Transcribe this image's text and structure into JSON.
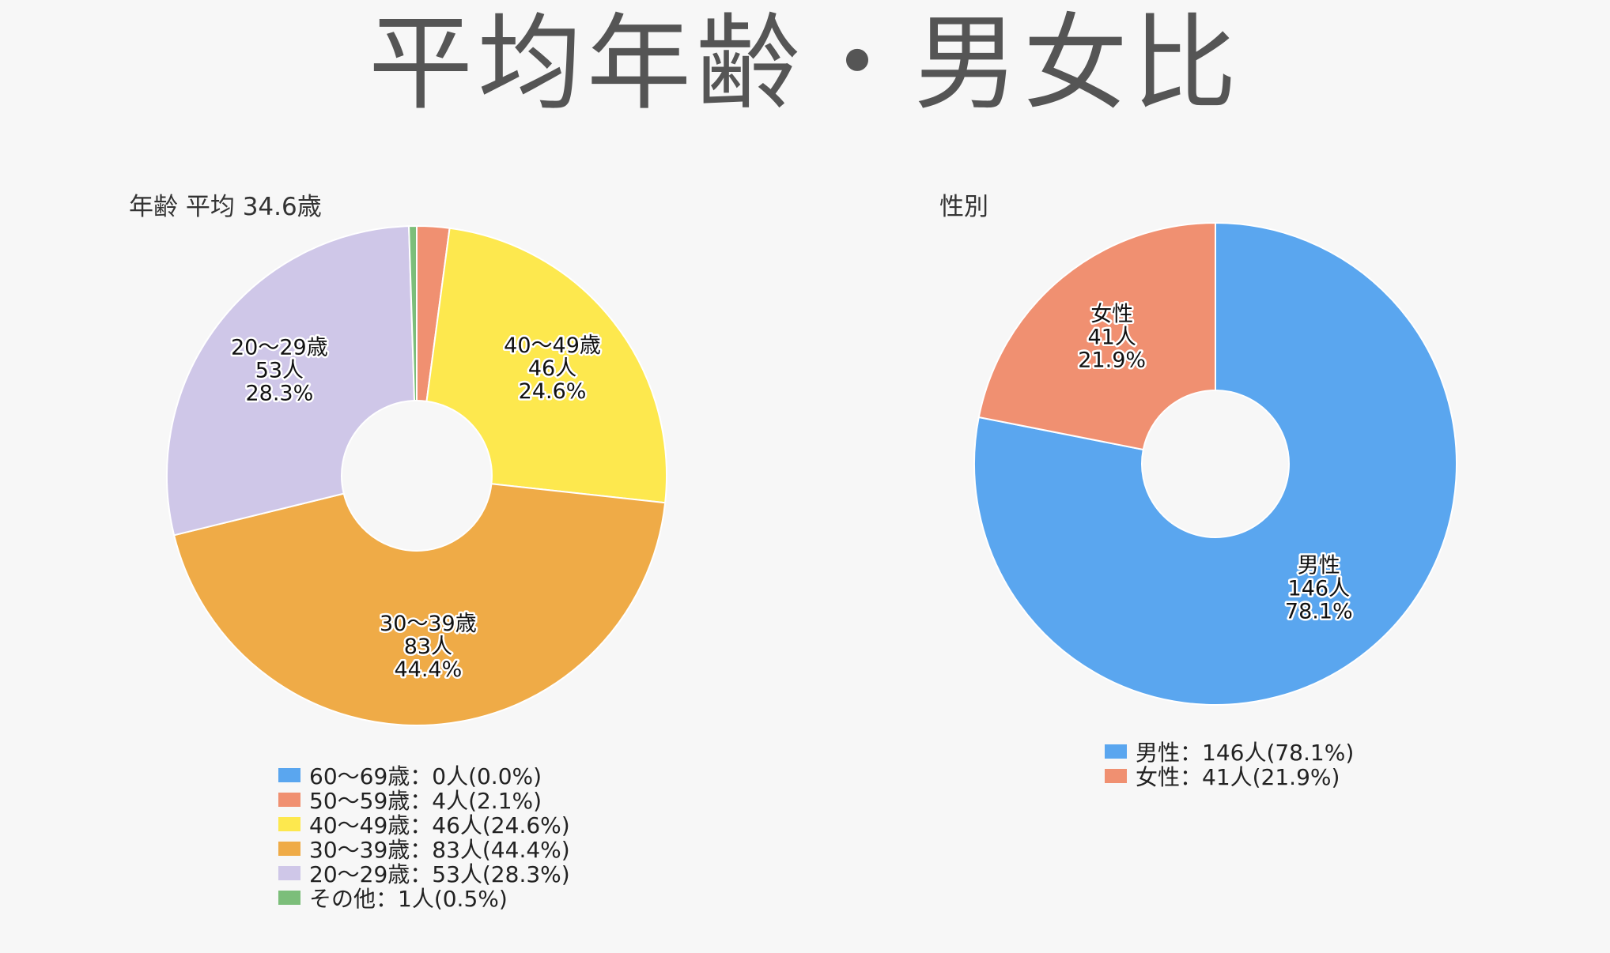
{
  "page": {
    "title": "平均年齢・男女比"
  },
  "chart_data": [
    {
      "type": "pie",
      "variant": "donut",
      "title": "年齢 平均 34.6歳",
      "legend_position": "bottom",
      "slices": [
        {
          "label": "60〜69歳",
          "count": 0,
          "percent": "0.0%",
          "value": 0.0,
          "color": "#5aa6ef",
          "slice_lines": [],
          "legend": "60〜69歳：0人(0.0%)"
        },
        {
          "label": "50〜59歳",
          "count": 4,
          "percent": "2.1%",
          "value": 2.1,
          "color": "#f09071",
          "slice_lines": [],
          "legend": "50〜59歳：4人(2.1%)"
        },
        {
          "label": "40〜49歳",
          "count": 46,
          "percent": "24.6%",
          "value": 24.6,
          "color": "#fde84e",
          "slice_lines": [
            "40〜49歳",
            "46人",
            "24.6%"
          ],
          "legend": "40〜49歳：46人(24.6%)"
        },
        {
          "label": "30〜39歳",
          "count": 83,
          "percent": "44.4%",
          "value": 44.4,
          "color": "#efab47",
          "slice_lines": [
            "30〜39歳",
            "83人",
            "44.4%"
          ],
          "legend": "30〜39歳：83人(44.4%)"
        },
        {
          "label": "20〜29歳",
          "count": 53,
          "percent": "28.3%",
          "value": 28.3,
          "color": "#cfc7e8",
          "slice_lines": [
            "20〜29歳",
            "53人",
            "28.3%"
          ],
          "legend": "20〜29歳：53人(28.3%)"
        },
        {
          "label": "その他",
          "count": 1,
          "percent": "0.5%",
          "value": 0.5,
          "color": "#7cbe7a",
          "slice_lines": [],
          "legend": "その他：1人(0.5%)"
        }
      ]
    },
    {
      "type": "pie",
      "variant": "donut",
      "title": "性別",
      "legend_position": "bottom",
      "slices": [
        {
          "label": "男性",
          "count": 146,
          "percent": "78.1%",
          "value": 78.1,
          "color": "#5aa6ef",
          "slice_lines": [
            "男性",
            "146人",
            "78.1%"
          ],
          "legend": "男性：146人(78.1%)"
        },
        {
          "label": "女性",
          "count": 41,
          "percent": "21.9%",
          "value": 21.9,
          "color": "#f09071",
          "slice_lines": [
            "女性",
            "41人",
            "21.9%"
          ],
          "legend": "女性：41人(21.9%)"
        }
      ]
    }
  ]
}
